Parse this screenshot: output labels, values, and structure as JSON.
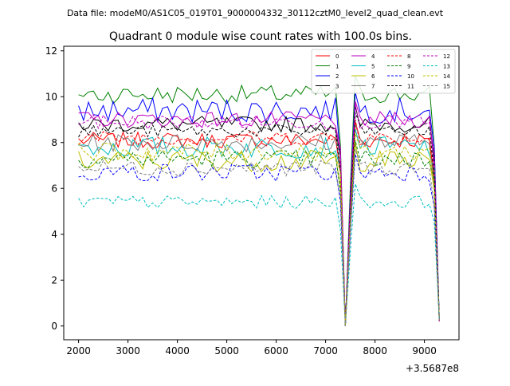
{
  "suptitle": "Data file: modeM0/AS1C05_019T01_9000004332_30112cztM0_level2_quad_clean.evt",
  "chart_data": {
    "type": "line",
    "title": "Quadrant 0 module wise count rates with 100.0s bins.",
    "xlabel": "",
    "ylabel": "",
    "offset_label": "+3.5687e8",
    "xlim": [
      1700,
      9700
    ],
    "ylim": [
      -0.6,
      12.2
    ],
    "xticks": [
      2000,
      3000,
      4000,
      5000,
      6000,
      7000,
      8000,
      9000
    ],
    "yticks": [
      0,
      2,
      4,
      6,
      8,
      10,
      12
    ],
    "legend_position": "top-right",
    "legend_columns": 4,
    "x_start": 2000,
    "x_step": 100,
    "num_points": 74,
    "dips": [
      {
        "x": 7400,
        "y": 0.0
      },
      {
        "x": 9300,
        "y": 0.2
      }
    ],
    "series": [
      {
        "name": "0",
        "color": "#ff0000",
        "dash": "solid",
        "level": 8.1,
        "spread": 0.22
      },
      {
        "name": "1",
        "color": "#008000",
        "dash": "solid",
        "level": 10.1,
        "spread": 0.25
      },
      {
        "name": "2",
        "color": "#0000ff",
        "dash": "solid",
        "level": 9.4,
        "spread": 0.35
      },
      {
        "name": "3",
        "color": "#000000",
        "dash": "solid",
        "level": 8.8,
        "spread": 0.22
      },
      {
        "name": "4",
        "color": "#bf00bf",
        "dash": "solid",
        "level": 9.0,
        "spread": 0.22
      },
      {
        "name": "5",
        "color": "#00bfbf",
        "dash": "solid",
        "level": 7.8,
        "spread": 0.3
      },
      {
        "name": "6",
        "color": "#bfbf00",
        "dash": "solid",
        "level": 7.2,
        "spread": 0.3
      },
      {
        "name": "7",
        "color": "#808080",
        "dash": "solid",
        "level": 8.0,
        "spread": 0.25
      },
      {
        "name": "8",
        "color": "#ff0000",
        "dash": "dashed",
        "level": 8.2,
        "spread": 0.2
      },
      {
        "name": "9",
        "color": "#008000",
        "dash": "dashed",
        "level": 7.3,
        "spread": 0.25
      },
      {
        "name": "10",
        "color": "#0000ff",
        "dash": "dashed",
        "level": 6.7,
        "spread": 0.25
      },
      {
        "name": "11",
        "color": "#000000",
        "dash": "dashed",
        "level": 8.5,
        "spread": 0.18
      },
      {
        "name": "12",
        "color": "#bf00bf",
        "dash": "dashed",
        "level": 8.9,
        "spread": 0.2
      },
      {
        "name": "13",
        "color": "#00bfbf",
        "dash": "dashed",
        "level": 5.4,
        "spread": 0.18
      },
      {
        "name": "14",
        "color": "#bfbf00",
        "dash": "dashed",
        "level": 7.6,
        "spread": 0.25
      },
      {
        "name": "15",
        "color": "#808080",
        "dash": "dashed",
        "level": 6.9,
        "spread": 0.22
      }
    ]
  }
}
